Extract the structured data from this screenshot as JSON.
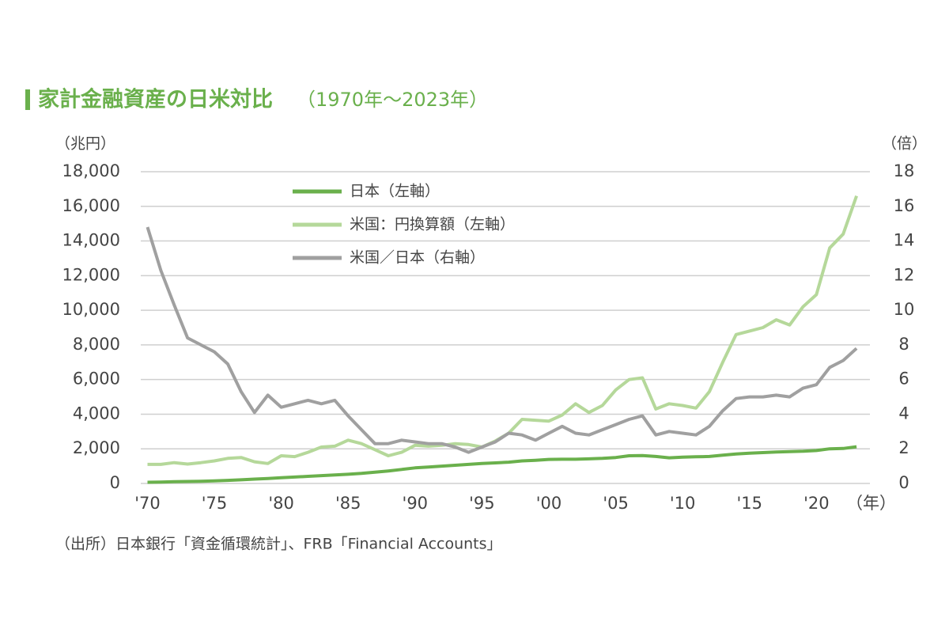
{
  "chart_data": {
    "type": "line",
    "title": "家計金融資産の日米対比",
    "subtitle": "（1970年～2023年）",
    "y_label": "（兆円）",
    "y2_label": "（倍）",
    "x_label": "（年）",
    "source": "（出所）日本銀行「資金循環統計」、FRB「Financial Accounts」",
    "legend": "upper-left",
    "grid": true,
    "x": [
      1970,
      1971,
      1972,
      1973,
      1974,
      1975,
      1976,
      1977,
      1978,
      1979,
      1980,
      1981,
      1982,
      1983,
      1984,
      1985,
      1986,
      1987,
      1988,
      1989,
      1990,
      1991,
      1992,
      1993,
      1994,
      1995,
      1996,
      1997,
      1998,
      1999,
      2000,
      2001,
      2002,
      2003,
      2004,
      2005,
      2006,
      2007,
      2008,
      2009,
      2010,
      2011,
      2012,
      2013,
      2014,
      2015,
      2016,
      2017,
      2018,
      2019,
      2020,
      2021,
      2022,
      2023
    ],
    "xlim": [
      1969.5,
      2024
    ],
    "xticks": [
      {
        "value": 1970,
        "label": "'70"
      },
      {
        "value": 1975,
        "label": "'75"
      },
      {
        "value": 1980,
        "label": "'80"
      },
      {
        "value": 1985,
        "label": "'85"
      },
      {
        "value": 1990,
        "label": "'90"
      },
      {
        "value": 1995,
        "label": "'95"
      },
      {
        "value": 2000,
        "label": "'00"
      },
      {
        "value": 2005,
        "label": "'05"
      },
      {
        "value": 2010,
        "label": "'10"
      },
      {
        "value": 2015,
        "label": "'15"
      },
      {
        "value": 2020,
        "label": "'20"
      }
    ],
    "ylim": [
      0,
      18000
    ],
    "yticks": [
      0,
      {
        "value": 2000,
        "label": "2,000"
      },
      {
        "value": 4000,
        "label": "4,000"
      },
      {
        "value": 6000,
        "label": "6,000"
      },
      {
        "value": 8000,
        "label": "8,000"
      },
      {
        "value": 10000,
        "label": "10,000"
      },
      {
        "value": 12000,
        "label": "12,000"
      },
      {
        "value": 14000,
        "label": "14,000"
      },
      {
        "value": 16000,
        "label": "16,000"
      },
      {
        "value": 18000,
        "label": "18,000"
      }
    ],
    "y2lim": [
      0,
      18
    ],
    "y2ticks": [
      0,
      2,
      4,
      6,
      8,
      10,
      12,
      14,
      16,
      18
    ],
    "series": [
      {
        "name": "日本（左軸）",
        "color": "#6ab04c",
        "values": [
          67,
          80,
          100,
          115,
          130,
          150,
          180,
          210,
          250,
          290,
          330,
          370,
          410,
          450,
          490,
          530,
          580,
          650,
          720,
          810,
          900,
          950,
          1000,
          1050,
          1100,
          1150,
          1190,
          1230,
          1300,
          1340,
          1390,
          1400,
          1400,
          1420,
          1450,
          1500,
          1600,
          1610,
          1560,
          1480,
          1520,
          1540,
          1560,
          1630,
          1700,
          1750,
          1780,
          1820,
          1840,
          1860,
          1900,
          2000,
          2020,
          2120
        ]
      },
      {
        "name": "米国：円換算額（左軸）",
        "color": "#b5d89a",
        "values": [
          1100,
          1100,
          1200,
          1120,
          1200,
          1300,
          1450,
          1500,
          1250,
          1150,
          1600,
          1550,
          1800,
          2100,
          2150,
          2500,
          2300,
          1950,
          1600,
          1800,
          2200,
          2150,
          2200,
          2300,
          2250,
          2100,
          2450,
          2900,
          3700,
          3650,
          3600,
          3950,
          4600,
          4100,
          4500,
          5400,
          6000,
          6100,
          4300,
          4600,
          4500,
          4350,
          5300,
          7000,
          8600,
          8800,
          9000,
          9450,
          9150,
          10200,
          10900,
          13600,
          14400,
          16600
        ]
      },
      {
        "name": "米国／日本（右軸）",
        "color": "#a0a0a0",
        "axis": "y2",
        "values": [
          14.8,
          12.3,
          10.3,
          8.4,
          8.0,
          7.6,
          6.9,
          5.3,
          4.1,
          5.1,
          4.4,
          4.6,
          4.8,
          4.6,
          4.8,
          3.9,
          3.1,
          2.3,
          2.3,
          2.5,
          2.4,
          2.3,
          2.3,
          2.1,
          1.8,
          2.1,
          2.4,
          2.9,
          2.8,
          2.5,
          2.9,
          3.3,
          2.9,
          2.8,
          3.1,
          3.4,
          3.7,
          3.9,
          2.8,
          3.0,
          2.9,
          2.8,
          3.3,
          4.2,
          4.9,
          5.0,
          5.0,
          5.1,
          5.0,
          5.5,
          5.7,
          6.7,
          7.1,
          7.8
        ]
      }
    ]
  }
}
